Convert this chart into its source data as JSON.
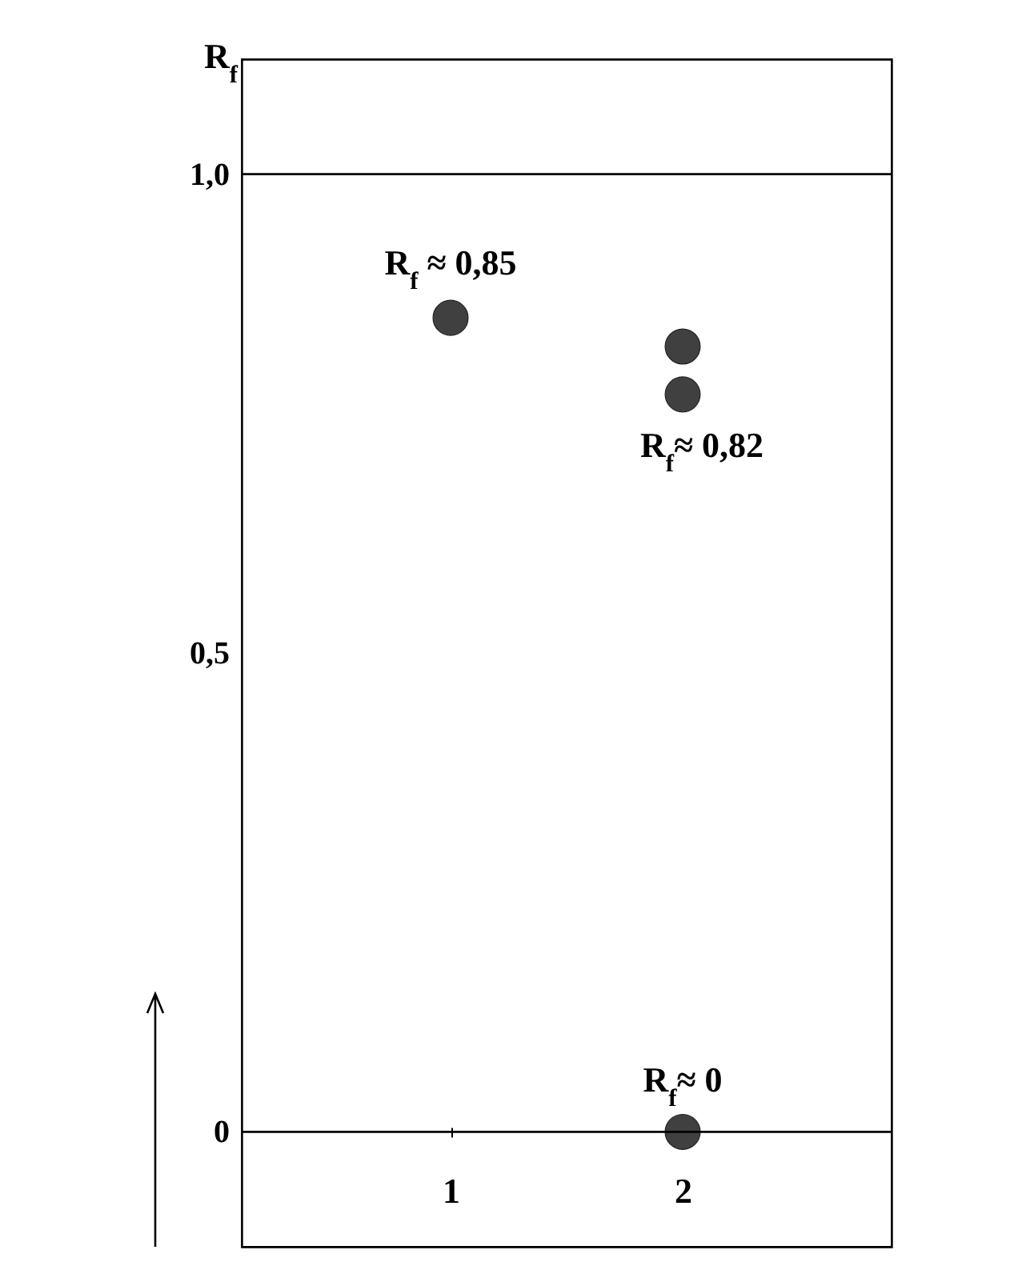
{
  "chart_data": {
    "type": "scatter",
    "ylabel": "R$_{f}$",
    "categories": [
      "1",
      "2"
    ],
    "series": [
      {
        "color": "#404040",
        "x": [
          "1",
          "2",
          "2",
          "2"
        ],
        "values": [
          0.85,
          0.82,
          0.77,
          0
        ]
      }
    ],
    "marker": "circle",
    "ylim": [
      -0.12,
      1.12
    ],
    "yticks": [
      {
        "value": 0,
        "label": "0"
      },
      {
        "value": 0.5,
        "label": "0,5"
      },
      {
        "value": 1.0,
        "label": "1,0"
      }
    ],
    "ref_lines": [
      {
        "axis": "y",
        "value": 0
      },
      {
        "axis": "y",
        "value": 1.0
      }
    ],
    "annotations": [
      {
        "text": "R$_{f}$ ≈ 0,85",
        "x": "1",
        "y": 0.85
      },
      {
        "text": "R$_{f}$≈ 0,82",
        "x": "2",
        "y": 0.82
      },
      {
        "text": "R$_{f}$≈ 0",
        "x": "2",
        "y": 0
      }
    ],
    "grid": false,
    "legend": false
  }
}
